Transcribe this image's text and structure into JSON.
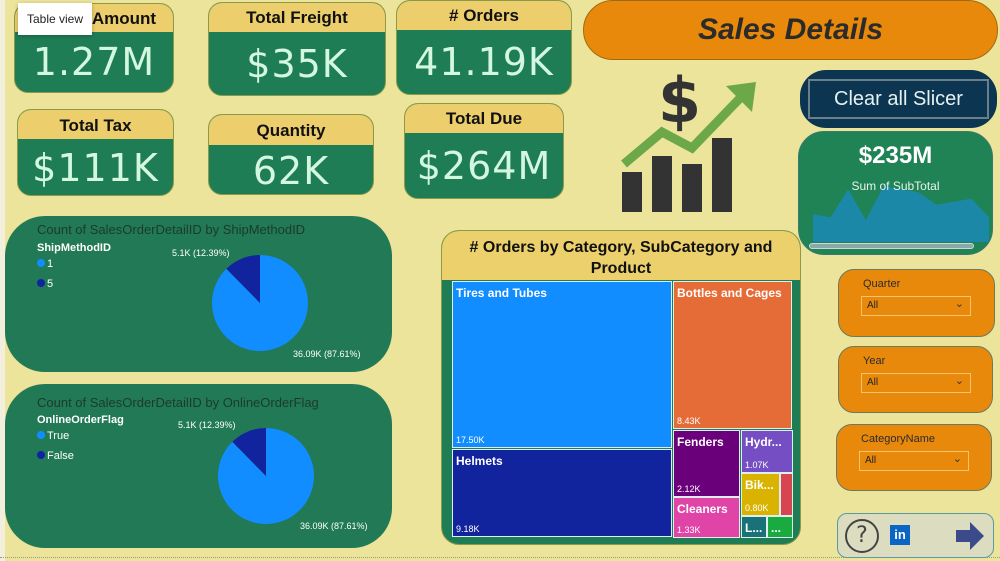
{
  "tooltip": "Table view",
  "kpis": {
    "amount": {
      "label": "Amount",
      "value": "1.27M"
    },
    "freight": {
      "label": "Total Freight",
      "value": "$35K"
    },
    "orders": {
      "label": "# Orders",
      "value": "41.19K"
    },
    "tax": {
      "label": "Total Tax",
      "value": "$111K"
    },
    "quantity": {
      "label": "Quantity",
      "value": "62K"
    },
    "due": {
      "label": "Total Due",
      "value": "$264M"
    }
  },
  "banner": {
    "title": "Sales Details"
  },
  "clear_button": {
    "label": "Clear all Slicer"
  },
  "subtotal_card": {
    "value": "$235M",
    "label": "Sum of SubTotal",
    "sparkline": [
      0.45,
      0.4,
      0.85,
      0.35,
      0.9,
      0.85,
      0.8,
      0.6,
      0.65,
      0.7,
      0.4
    ],
    "color": "#1b88a8"
  },
  "pie_ship": {
    "title": "Count of SalesOrderDetailID by ShipMethodID",
    "legend_title": "ShipMethodID",
    "slices": [
      {
        "name": "1",
        "value": 36.09,
        "label": "36.09K (87.61%)",
        "color": "#118dff"
      },
      {
        "name": "5",
        "value": 5.1,
        "label": "5.1K (12.39%)",
        "color": "#12239e"
      }
    ]
  },
  "pie_online": {
    "title": "Count of SalesOrderDetailID by OnlineOrderFlag",
    "legend_title": "OnlineOrderFlag",
    "slices": [
      {
        "name": "True",
        "value": 36.09,
        "label": "36.09K (87.61%)",
        "color": "#118dff"
      },
      {
        "name": "False",
        "value": 5.1,
        "label": "5.1K (12.39%)",
        "color": "#12239e"
      }
    ]
  },
  "treemap": {
    "title": "# Orders by Category, SubCategory and Product",
    "cells": [
      {
        "name": "Tires and Tubes",
        "value": "17.50K",
        "color": "#118dff"
      },
      {
        "name": "Helmets",
        "value": "9.18K",
        "color": "#12239e"
      },
      {
        "name": "Bottles and Cages",
        "value": "8.43K",
        "color": "#e66c37"
      },
      {
        "name": "Fenders",
        "value": "2.12K",
        "color": "#6b007b"
      },
      {
        "name": "Cleaners",
        "value": "1.33K",
        "color": "#e044a7"
      },
      {
        "name": "Hydr...",
        "value": "1.07K",
        "color": "#744ec2"
      },
      {
        "name": "Bik...",
        "value": "0.80K",
        "color": "#d9b300"
      },
      {
        "name": "",
        "value": "",
        "color": "#d64550"
      },
      {
        "name": "L...",
        "value": "",
        "color": "#197278"
      },
      {
        "name": "...",
        "value": "",
        "color": "#1aab40"
      }
    ]
  },
  "slicers": [
    {
      "label": "Quarter",
      "value": "All"
    },
    {
      "label": "Year",
      "value": "All"
    },
    {
      "label": "CategoryName",
      "value": "All"
    }
  ],
  "nav": {
    "help": "?",
    "linkedin": "in"
  }
}
